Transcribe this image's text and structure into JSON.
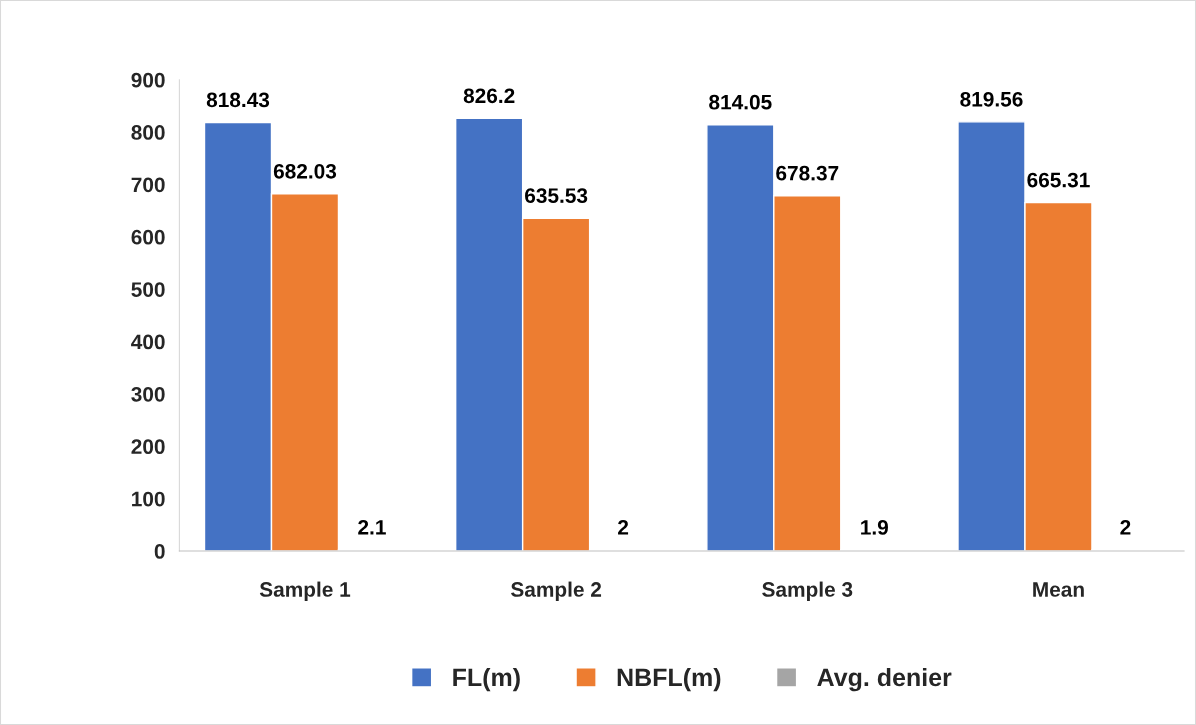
{
  "chart_data": {
    "type": "bar",
    "categories": [
      "Sample 1",
      "Sample 2",
      "Sample 3",
      "Mean"
    ],
    "series": [
      {
        "name": "FL(m)",
        "color": "#4472c4",
        "values": [
          818.43,
          826.2,
          814.05,
          819.56
        ]
      },
      {
        "name": "NBFL(m)",
        "color": "#ed7d31",
        "values": [
          682.03,
          635.53,
          678.37,
          665.31
        ]
      },
      {
        "name": "Avg. denier",
        "color": "#a5a5a5",
        "values": [
          2.1,
          2,
          1.9,
          2
        ]
      }
    ],
    "ylim": [
      0,
      900
    ],
    "yticks": [
      0,
      100,
      200,
      300,
      400,
      500,
      600,
      700,
      800,
      900
    ],
    "grid": false,
    "legend": "bottom",
    "data_labels": true
  }
}
